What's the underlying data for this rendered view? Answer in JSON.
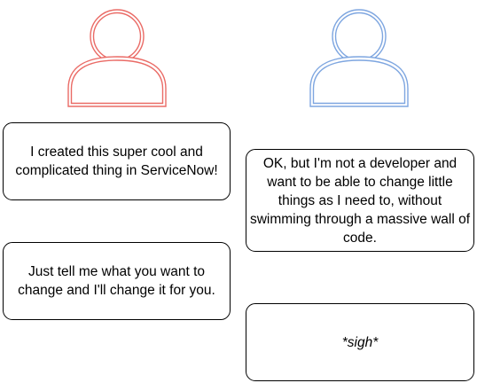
{
  "people": [
    {
      "name": "developer",
      "color": "#ea6b66",
      "fill": "#f8cecc"
    },
    {
      "name": "user",
      "color": "#7ea6e0",
      "fill": "#dae8fc"
    }
  ],
  "bubbles": {
    "developer_1": "I created this super cool and complicated thing in ServiceNow!",
    "developer_2": "Just tell me what you want to change and I'll change it for you.",
    "user_1": "OK, but I'm not a developer and want to be able to change little things as I need to, without swimming through a massive wall of code.",
    "user_2": "*sigh*"
  }
}
